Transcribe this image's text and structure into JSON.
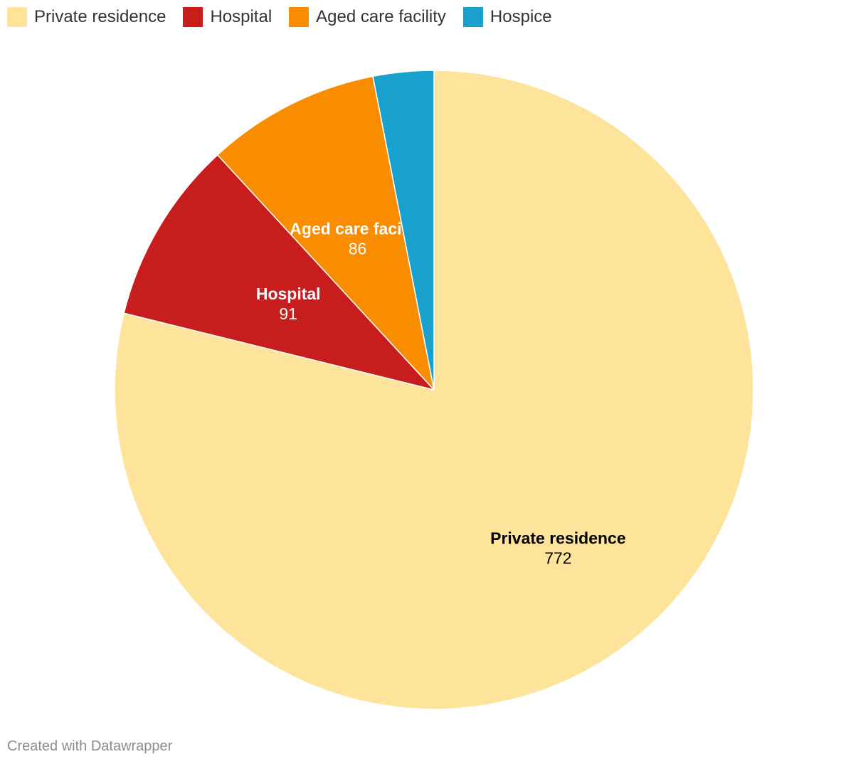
{
  "chart_data": {
    "type": "pie",
    "categories": [
      "Private residence",
      "Hospital",
      "Aged care facility",
      "Hospice"
    ],
    "values": [
      772,
      91,
      86,
      30
    ],
    "colors": [
      "#fee49a",
      "#c71e1d",
      "#fa8c00",
      "#18a1cd"
    ],
    "data_labels": [
      {
        "name": "Private residence",
        "value": "772",
        "color": "#000000"
      },
      {
        "name": "Hospital",
        "value": "91",
        "color": "#ffffff"
      },
      {
        "name": "Aged care facility",
        "value": "86",
        "color": "#ffffff"
      },
      {
        "name": "",
        "value": "",
        "color": "#ffffff"
      }
    ],
    "legend": "top-left",
    "start_angle": "12 o'clock, clockwise"
  },
  "footer": {
    "credit": "Created with Datawrapper"
  }
}
